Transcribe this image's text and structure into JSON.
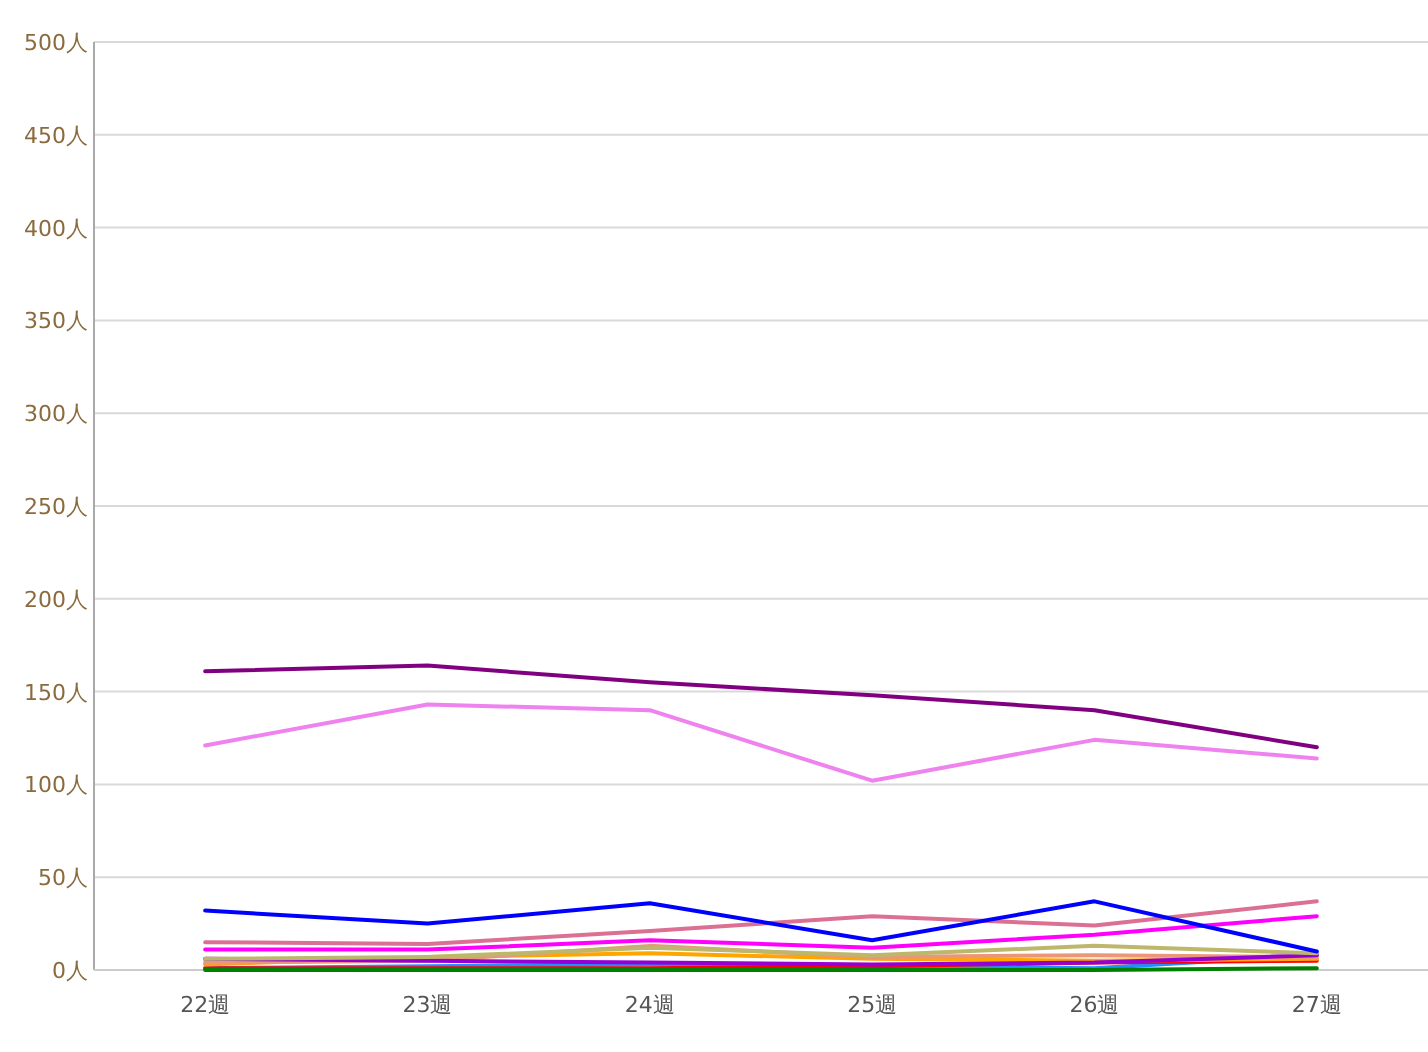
{
  "chart_data": {
    "type": "line",
    "categories": [
      "22週",
      "23週",
      "24週",
      "25週",
      "26週",
      "27週"
    ],
    "ylim": [
      0,
      500
    ],
    "yticks": [
      {
        "value": 0,
        "label": "0人"
      },
      {
        "value": 50,
        "label": "50人"
      },
      {
        "value": 100,
        "label": "100人"
      },
      {
        "value": 150,
        "label": "150人"
      },
      {
        "value": 200,
        "label": "200人"
      },
      {
        "value": 250,
        "label": "250人"
      },
      {
        "value": 300,
        "label": "300人"
      },
      {
        "value": 350,
        "label": "350人"
      },
      {
        "value": 400,
        "label": "400人"
      },
      {
        "value": 450,
        "label": "450人"
      },
      {
        "value": 500,
        "label": "500人"
      }
    ],
    "grid": "y",
    "marker": "none",
    "line_style": "solid",
    "series": [
      {
        "color": "#1e90ff",
        "values": [
          1,
          2,
          3,
          2,
          1,
          8
        ]
      },
      {
        "color": "#ff0000",
        "values": [
          1,
          1,
          1,
          2,
          4,
          5
        ]
      },
      {
        "color": "#ffa500",
        "values": [
          3,
          7,
          9,
          6,
          5,
          6
        ]
      },
      {
        "color": "#e9967a",
        "values": [
          4,
          5,
          13,
          7,
          8,
          7
        ]
      },
      {
        "color": "#9400d3",
        "values": [
          6,
          5,
          4,
          3,
          4,
          8
        ]
      },
      {
        "color": "#bdb76b",
        "values": [
          6,
          7,
          12,
          8,
          13,
          9
        ]
      },
      {
        "color": "#ff00ff",
        "values": [
          11,
          11,
          16,
          12,
          19,
          29
        ]
      },
      {
        "color": "#db7093",
        "values": [
          15,
          14,
          21,
          29,
          24,
          37
        ]
      },
      {
        "color": "#0000ff",
        "values": [
          32,
          25,
          36,
          16,
          37,
          10
        ]
      },
      {
        "color": "#ee82ee",
        "values": [
          121,
          143,
          140,
          102,
          124,
          114
        ]
      },
      {
        "color": "#800080",
        "values": [
          161,
          164,
          155,
          148,
          140,
          120
        ]
      },
      {
        "color": "#008000",
        "values": [
          0,
          0,
          0,
          0,
          0,
          1
        ]
      }
    ]
  }
}
